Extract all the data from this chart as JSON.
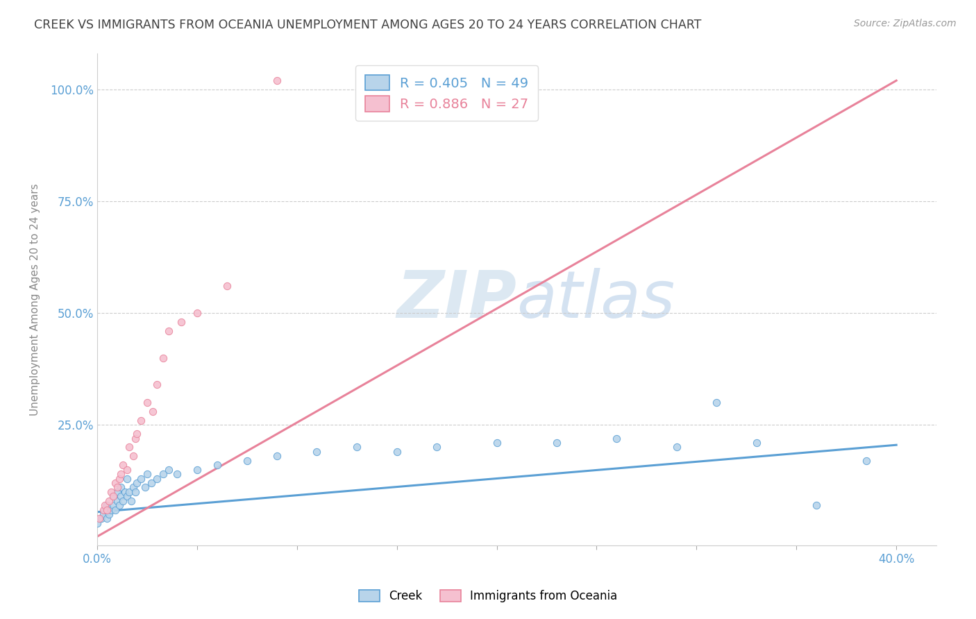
{
  "title": "CREEK VS IMMIGRANTS FROM OCEANIA UNEMPLOYMENT AMONG AGES 20 TO 24 YEARS CORRELATION CHART",
  "source": "Source: ZipAtlas.com",
  "ylabel": "Unemployment Among Ages 20 to 24 years",
  "xlim": [
    0.0,
    0.42
  ],
  "ylim": [
    -0.02,
    1.08
  ],
  "ytick_positions": [
    0.0,
    0.25,
    0.5,
    0.75,
    1.0
  ],
  "ytick_labels": [
    "",
    "25.0%",
    "50.0%",
    "75.0%",
    "100.0%"
  ],
  "xtick_positions": [
    0.0,
    0.05,
    0.1,
    0.15,
    0.2,
    0.25,
    0.3,
    0.35,
    0.4
  ],
  "xtick_labels": [
    "0.0%",
    "",
    "",
    "",
    "",
    "",
    "",
    "",
    "40.0%"
  ],
  "legend_r1": "R = 0.405",
  "legend_n1": "N = 49",
  "legend_r2": "R = 0.886",
  "legend_n2": "N = 27",
  "creek_color": "#b8d4ea",
  "oceania_color": "#f5c0d0",
  "creek_line_color": "#5a9fd4",
  "oceania_line_color": "#e8829a",
  "title_color": "#404040",
  "axis_label_color": "#5a9fd4",
  "watermark_color": "#dce8f2",
  "background_color": "#ffffff",
  "creek_scatter_x": [
    0.0,
    0.002,
    0.003,
    0.004,
    0.005,
    0.005,
    0.006,
    0.007,
    0.008,
    0.008,
    0.009,
    0.01,
    0.01,
    0.011,
    0.012,
    0.012,
    0.013,
    0.014,
    0.015,
    0.015,
    0.016,
    0.017,
    0.018,
    0.019,
    0.02,
    0.022,
    0.024,
    0.025,
    0.027,
    0.03,
    0.033,
    0.036,
    0.04,
    0.05,
    0.06,
    0.075,
    0.09,
    0.11,
    0.13,
    0.15,
    0.17,
    0.2,
    0.23,
    0.26,
    0.29,
    0.31,
    0.33,
    0.36,
    0.385
  ],
  "creek_scatter_y": [
    0.03,
    0.04,
    0.05,
    0.06,
    0.04,
    0.07,
    0.05,
    0.06,
    0.07,
    0.09,
    0.06,
    0.08,
    0.1,
    0.07,
    0.09,
    0.11,
    0.08,
    0.1,
    0.09,
    0.13,
    0.1,
    0.08,
    0.11,
    0.1,
    0.12,
    0.13,
    0.11,
    0.14,
    0.12,
    0.13,
    0.14,
    0.15,
    0.14,
    0.15,
    0.16,
    0.17,
    0.18,
    0.19,
    0.2,
    0.19,
    0.2,
    0.21,
    0.21,
    0.22,
    0.2,
    0.3,
    0.21,
    0.07,
    0.17
  ],
  "oceania_scatter_x": [
    0.001,
    0.003,
    0.004,
    0.005,
    0.006,
    0.007,
    0.008,
    0.009,
    0.01,
    0.011,
    0.012,
    0.013,
    0.015,
    0.016,
    0.018,
    0.019,
    0.02,
    0.022,
    0.025,
    0.028,
    0.03,
    0.033,
    0.036,
    0.042,
    0.05,
    0.065,
    0.09
  ],
  "oceania_scatter_y": [
    0.04,
    0.06,
    0.07,
    0.06,
    0.08,
    0.1,
    0.09,
    0.12,
    0.11,
    0.13,
    0.14,
    0.16,
    0.15,
    0.2,
    0.18,
    0.22,
    0.23,
    0.26,
    0.3,
    0.28,
    0.34,
    0.4,
    0.46,
    0.48,
    0.5,
    0.56,
    1.02
  ],
  "creek_trend_x": [
    0.0,
    0.4
  ],
  "creek_trend_y": [
    0.055,
    0.205
  ],
  "oceania_trend_x": [
    0.0,
    0.4
  ],
  "oceania_trend_y": [
    0.0,
    1.02
  ]
}
